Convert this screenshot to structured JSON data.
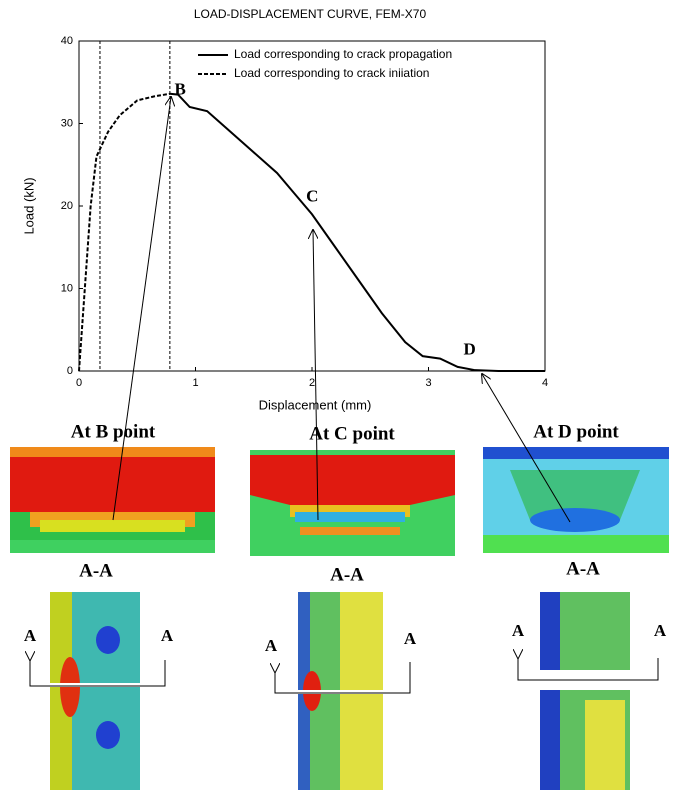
{
  "chart_data": {
    "type": "line",
    "title": "LOAD-DISPLACEMENT CURVE, FEM-X70",
    "xlabel": "Displacement (mm)",
    "ylabel": "Load (kN)",
    "xlim": [
      0,
      4
    ],
    "ylim": [
      0,
      40
    ],
    "xticks": [
      0,
      1,
      2,
      3,
      4
    ],
    "yticks": [
      0,
      10,
      20,
      30,
      40
    ],
    "legend": "upper right",
    "vlines": [
      0.18,
      0.78
    ],
    "series": [
      {
        "name": "Load corresponding to crack propagation",
        "color": "#000000",
        "style": "solid",
        "x": [
          0.78,
          0.85,
          0.95,
          1.1,
          1.3,
          1.5,
          1.7,
          1.85,
          2.0,
          2.2,
          2.4,
          2.6,
          2.8,
          2.95,
          3.1,
          3.25,
          3.4,
          3.6,
          4.0
        ],
        "values": [
          33.6,
          33.5,
          32,
          31.5,
          29,
          26.5,
          24,
          21.5,
          19,
          15,
          11,
          7,
          3.5,
          1.8,
          1.5,
          0.5,
          0.1,
          0,
          0
        ]
      },
      {
        "name": "Load corresponding to crack iniiation",
        "color": "#000000",
        "style": "dashed",
        "x": [
          0,
          0.05,
          0.1,
          0.15,
          0.25,
          0.35,
          0.5,
          0.65,
          0.78
        ],
        "values": [
          0,
          10,
          20,
          26,
          29,
          31,
          32.8,
          33.3,
          33.6
        ]
      }
    ],
    "annotations": [
      {
        "text": "B",
        "x": 0.82,
        "y": 34
      },
      {
        "text": "C",
        "x": 1.95,
        "y": 21
      },
      {
        "text": "D",
        "x": 3.3,
        "y": 2.5
      }
    ]
  },
  "panels": [
    {
      "title": "At B point",
      "section": "A-A",
      "cut_labels": [
        "A",
        "A"
      ]
    },
    {
      "title": "At C point",
      "section": "A-A",
      "cut_labels": [
        "A",
        "A"
      ]
    },
    {
      "title": "At D point",
      "section": "A-A",
      "cut_labels": [
        "A",
        "A"
      ]
    }
  ]
}
